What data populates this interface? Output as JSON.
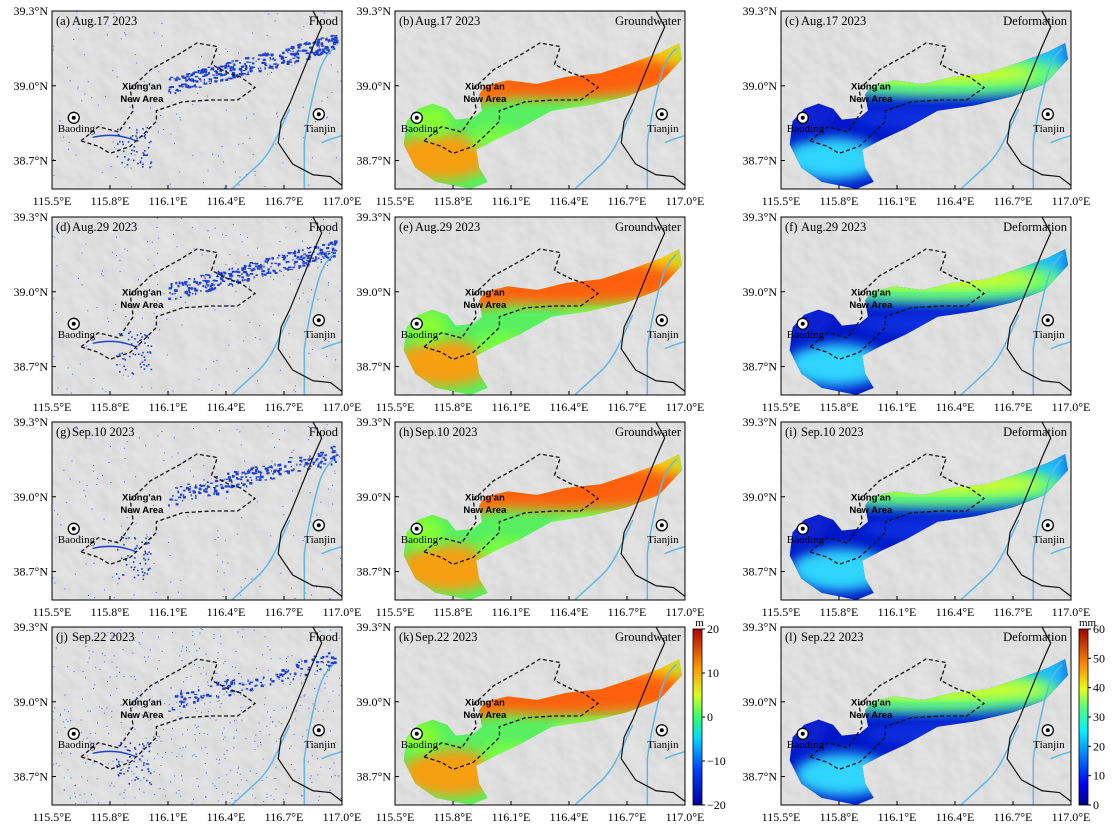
{
  "figure": {
    "rows": [
      {
        "date": "Aug.17 2023",
        "labels": [
          "(a)",
          "(b)",
          "(c)"
        ]
      },
      {
        "date": "Aug.29 2023",
        "labels": [
          "(d)",
          "(e)",
          "(f)"
        ]
      },
      {
        "date": "Sep.10 2023",
        "labels": [
          "(g)",
          "(h)",
          "(i)"
        ]
      },
      {
        "date": "Sep.22 2023",
        "labels": [
          "(j)",
          "(k)",
          "(l)"
        ]
      }
    ],
    "columns": [
      {
        "type": "flood",
        "title": "Flood"
      },
      {
        "type": "groundwater",
        "title": "Groundwater"
      },
      {
        "type": "deformation",
        "title": "Deformation"
      }
    ],
    "x_ticks": [
      "115.5°E",
      "115.8°E",
      "116.1°E",
      "116.4°E",
      "116.7°E",
      "117.0°E"
    ],
    "y_ticks": [
      "39.3°N",
      "39.0°N",
      "38.7°N"
    ],
    "places": {
      "xiongan_line1": "Xiong'an",
      "xiongan_line2": "New Area",
      "baoding": "Baoding",
      "tianjin": "Tianjin"
    },
    "colorbars": [
      {
        "unit": "m",
        "ticks": [
          "20",
          "10",
          "0",
          "−10",
          "−20"
        ],
        "range": [
          -20,
          20
        ]
      },
      {
        "unit": "mm",
        "ticks": [
          "60",
          "50",
          "40",
          "30",
          "20",
          "10",
          "0"
        ],
        "range": [
          0,
          60
        ]
      }
    ],
    "colors": {
      "flood": "#1c3fd4",
      "river": "#5fb9e6",
      "boundary": "#111111",
      "land": "#d4d4d4"
    }
  }
}
